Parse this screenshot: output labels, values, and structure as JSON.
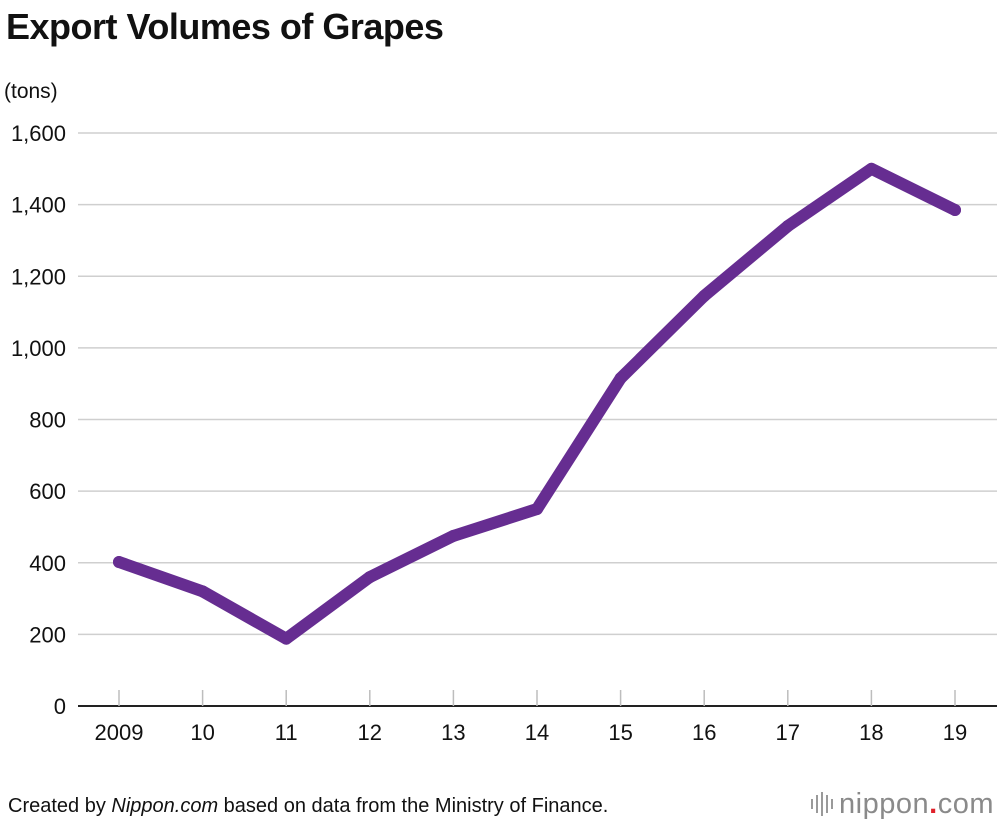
{
  "chart_data": {
    "type": "line",
    "title": "Export Volumes of Grapes",
    "ylabel": "(tons)",
    "xlabel": "",
    "categories": [
      "2009",
      "10",
      "11",
      "12",
      "13",
      "14",
      "15",
      "16",
      "17",
      "18",
      "19"
    ],
    "series": [
      {
        "name": "Export Volumes of Grapes",
        "values": [
          402,
          320,
          188,
          360,
          475,
          550,
          915,
          1145,
          1340,
          1500,
          1385
        ]
      }
    ],
    "ylim": [
      0,
      1600
    ],
    "yticks": [
      0,
      200,
      400,
      600,
      800,
      1000,
      1200,
      1400,
      1600
    ],
    "ytick_labels": [
      "0",
      "200",
      "400",
      "600",
      "800",
      "1,000",
      "1,200",
      "1,400",
      "1,600"
    ],
    "grid": true,
    "legend": "none",
    "line_color": "#662d91"
  },
  "footer": {
    "prefix": "Created by ",
    "source_name": "Nippon.com",
    "suffix": " based on data from the Ministry of Finance."
  },
  "logo": {
    "name": "nippon",
    "dot": ".",
    "tld": "com"
  }
}
